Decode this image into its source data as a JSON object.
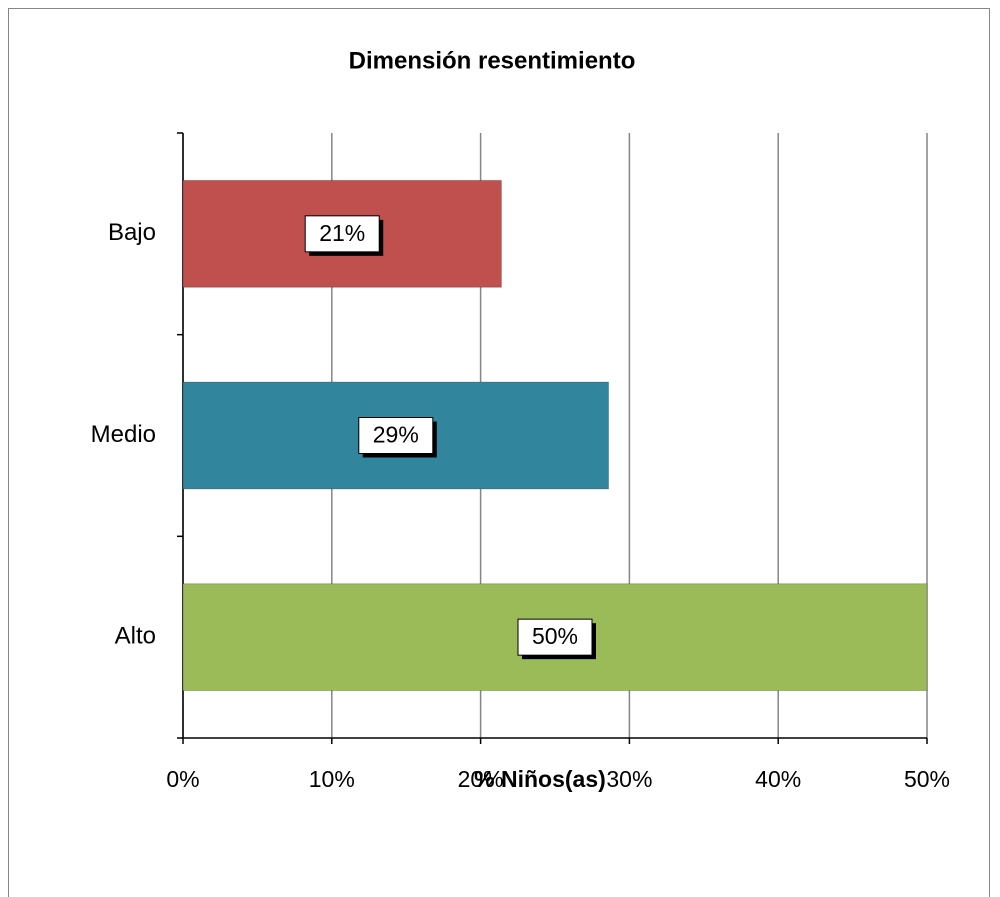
{
  "chart_data": {
    "type": "barh",
    "title": "Dimensión resentimiento",
    "categories": [
      "Bajo",
      "Medio",
      "Alto"
    ],
    "values": [
      21.4,
      28.6,
      50
    ],
    "value_labels": [
      "21%",
      "29%",
      "50%"
    ],
    "colors": [
      "#c0504d",
      "#31859c",
      "#9bbb59"
    ],
    "xlabel": "% Niños(as)",
    "xlim": [
      0,
      50
    ],
    "xticks": [
      {
        "value": 0,
        "label": "0%"
      },
      {
        "value": 10,
        "label": "10%"
      },
      {
        "value": 20,
        "label": "20%"
      },
      {
        "value": 30,
        "label": "30%"
      },
      {
        "value": 40,
        "label": "40%"
      },
      {
        "value": 50,
        "label": "50%"
      }
    ],
    "grid": true
  }
}
